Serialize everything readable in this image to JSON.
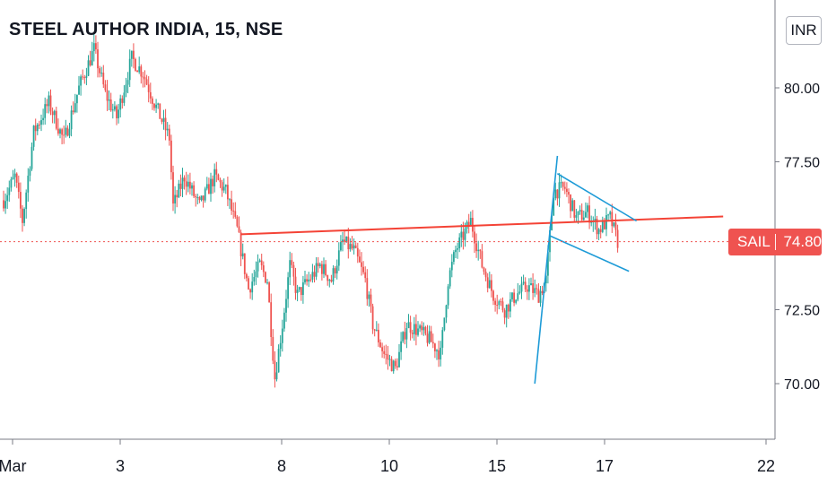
{
  "header": {
    "symbol_title": "STEEL AUTHOR INDIA, 15, NSE",
    "currency": "INR"
  },
  "price_tag": {
    "symbol": "SAIL",
    "price": "74.80",
    "color": "#ef5350"
  },
  "colors": {
    "up": "#26a69a",
    "down": "#ef5350",
    "resistance_line": "#f44336",
    "flag_lines": "#1e9bd7"
  },
  "chart_data": {
    "type": "candlestick",
    "title": "STEEL AUTHOR INDIA, 15, NSE",
    "ylim": [
      68.0,
      82.5
    ],
    "y_ticks": [
      "80.00",
      "77.50",
      "75.00",
      "72.50",
      "70.00"
    ],
    "x_ticks": [
      "Mar",
      "3",
      "8",
      "10",
      "15",
      "17",
      "22"
    ],
    "last_price": 74.8,
    "grid": false,
    "series": [
      {
        "name": "SAIL",
        "keypoints": [
          {
            "t": 0,
            "p": 76.2
          },
          {
            "t": 3,
            "p": 77.0
          },
          {
            "t": 5,
            "p": 75.5
          },
          {
            "t": 8,
            "p": 78.5
          },
          {
            "t": 12,
            "p": 79.5
          },
          {
            "t": 16,
            "p": 78.2
          },
          {
            "t": 20,
            "p": 80.0
          },
          {
            "t": 24,
            "p": 81.3
          },
          {
            "t": 27,
            "p": 79.8
          },
          {
            "t": 30,
            "p": 79.0
          },
          {
            "t": 34,
            "p": 81.0
          },
          {
            "t": 37,
            "p": 80.5
          },
          {
            "t": 40,
            "p": 79.5
          },
          {
            "t": 44,
            "p": 78.3
          },
          {
            "t": 45,
            "p": 76.0
          },
          {
            "t": 48,
            "p": 77.0
          },
          {
            "t": 52,
            "p": 76.0
          },
          {
            "t": 56,
            "p": 77.0
          },
          {
            "t": 59,
            "p": 76.5
          },
          {
            "t": 62,
            "p": 75.2
          },
          {
            "t": 65,
            "p": 73.2
          },
          {
            "t": 68,
            "p": 74.0
          },
          {
            "t": 70,
            "p": 73.5
          },
          {
            "t": 72,
            "p": 70.2
          },
          {
            "t": 74,
            "p": 72.0
          },
          {
            "t": 76,
            "p": 74.0
          },
          {
            "t": 78,
            "p": 73.0
          },
          {
            "t": 81,
            "p": 73.5
          },
          {
            "t": 84,
            "p": 74.0
          },
          {
            "t": 87,
            "p": 73.5
          },
          {
            "t": 90,
            "p": 74.8
          },
          {
            "t": 93,
            "p": 74.5
          },
          {
            "t": 96,
            "p": 73.5
          },
          {
            "t": 98,
            "p": 72.0
          },
          {
            "t": 101,
            "p": 71.0
          },
          {
            "t": 104,
            "p": 70.5
          },
          {
            "t": 107,
            "p": 72.0
          },
          {
            "t": 110,
            "p": 71.8
          },
          {
            "t": 113,
            "p": 71.5
          },
          {
            "t": 116,
            "p": 71.0
          },
          {
            "t": 118,
            "p": 73.5
          },
          {
            "t": 120,
            "p": 74.5
          },
          {
            "t": 124,
            "p": 75.5
          },
          {
            "t": 127,
            "p": 74.0
          },
          {
            "t": 130,
            "p": 73.0
          },
          {
            "t": 133,
            "p": 72.5
          },
          {
            "t": 136,
            "p": 73.0
          },
          {
            "t": 139,
            "p": 73.3
          },
          {
            "t": 142,
            "p": 73.0
          },
          {
            "t": 144,
            "p": 73.5
          },
          {
            "t": 146,
            "p": 76.5
          },
          {
            "t": 149,
            "p": 76.6
          },
          {
            "t": 152,
            "p": 75.6
          },
          {
            "t": 155,
            "p": 75.8
          },
          {
            "t": 158,
            "p": 75.2
          },
          {
            "t": 161,
            "p": 75.6
          },
          {
            "t": 163,
            "p": 74.8
          }
        ]
      }
    ],
    "annotations": [
      {
        "type": "resistance-line",
        "from": {
          "t": 63,
          "p": 75.05
        },
        "to": {
          "t": 191,
          "p": 75.65
        }
      },
      {
        "type": "flag-pole",
        "from": {
          "t": 141,
          "p": 70.0
        },
        "to": {
          "t": 147,
          "p": 77.7
        }
      },
      {
        "type": "flag-upper",
        "from": {
          "t": 147,
          "p": 77.1
        },
        "to": {
          "t": 168,
          "p": 75.5
        }
      },
      {
        "type": "flag-lower",
        "from": {
          "t": 145,
          "p": 75.0
        },
        "to": {
          "t": 166,
          "p": 73.8
        }
      }
    ]
  }
}
